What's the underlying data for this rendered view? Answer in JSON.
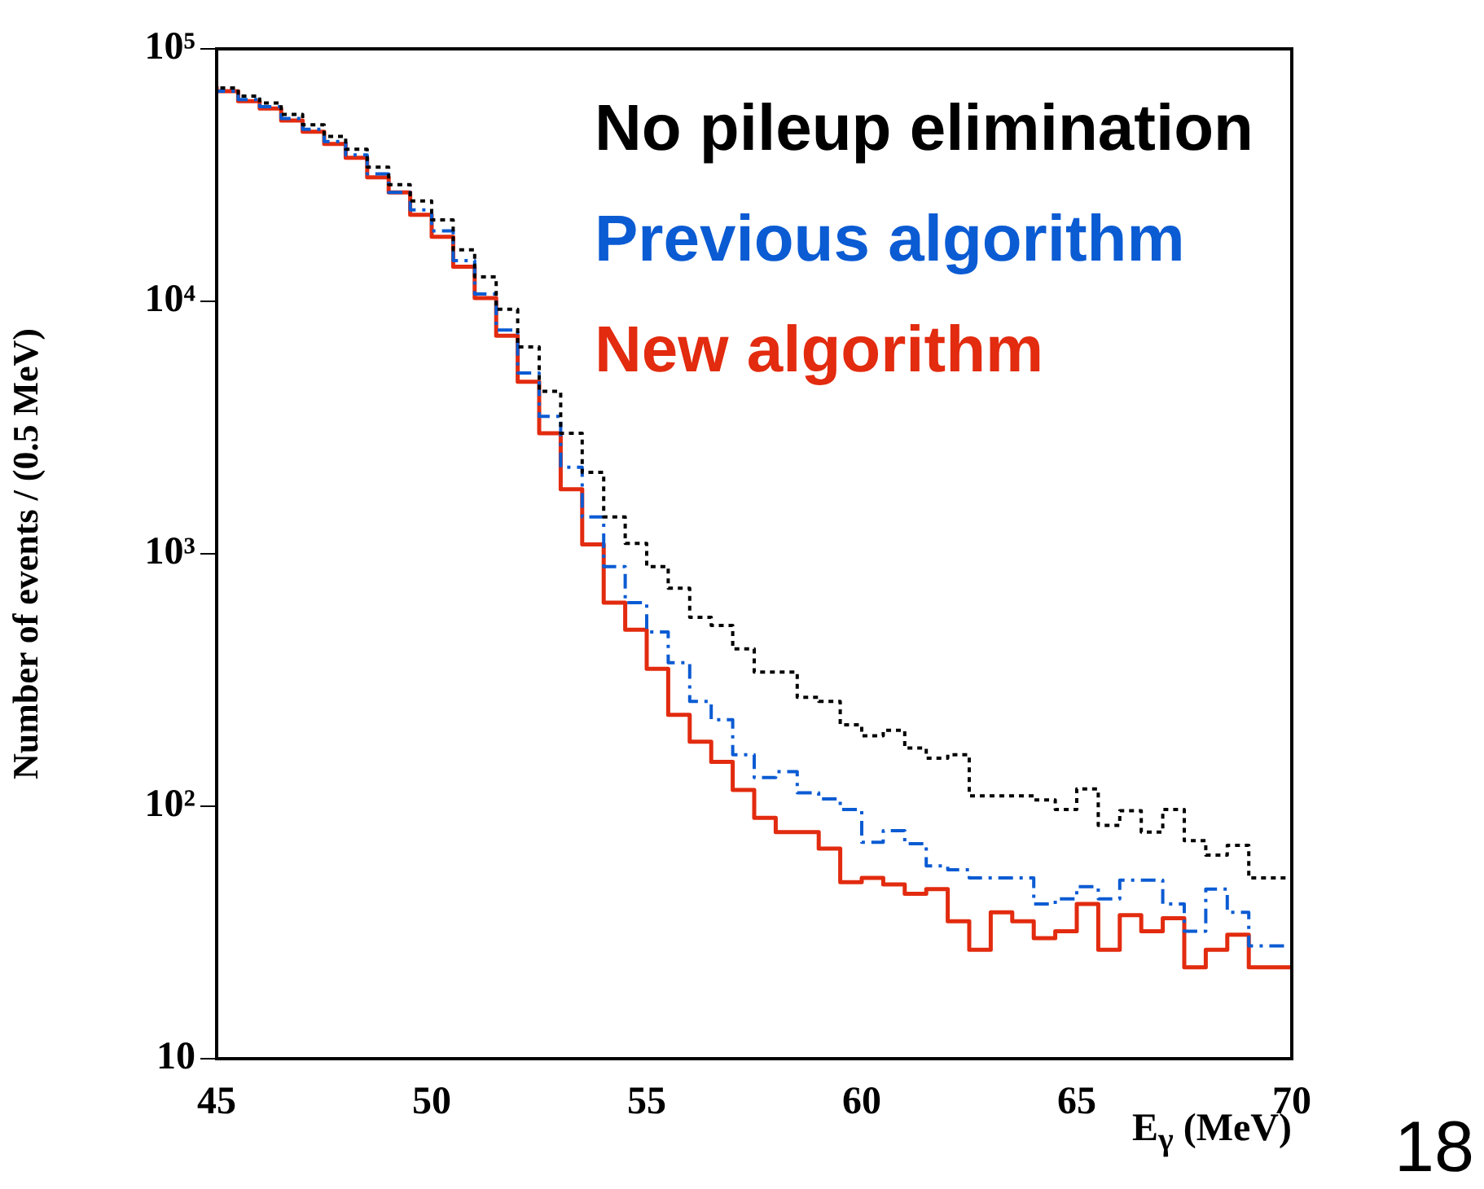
{
  "chart_data": {
    "type": "step",
    "ylabel": "Number of events / (0.5 MeV)",
    "xlabel": "E$_{γ}$ (MeV)",
    "x": [
      45,
      45.5,
      46,
      46.5,
      47,
      47.5,
      48,
      48.5,
      49,
      49.5,
      50,
      50.5,
      51,
      51.5,
      52,
      52.5,
      53,
      53.5,
      54,
      54.5,
      55,
      55.5,
      56,
      56.5,
      57,
      57.5,
      58,
      58.5,
      59,
      59.5,
      60,
      60.5,
      61,
      61.5,
      62,
      62.5,
      63,
      63.5,
      64,
      64.5,
      65,
      65.5,
      66,
      66.5,
      67,
      67.5,
      68,
      68.5,
      69,
      69.5,
      70
    ],
    "series": [
      {
        "name": "No pileup elimination",
        "color": "#000000",
        "line_style": "dotted",
        "values": [
          74000,
          70000,
          65000,
          61000,
          55000,
          50000,
          45000,
          40000,
          34000,
          29000,
          25000,
          21000,
          16000,
          12500,
          9300,
          6600,
          4400,
          3000,
          2100,
          1400,
          1100,
          890,
          730,
          560,
          520,
          420,
          340,
          340,
          270,
          260,
          210,
          190,
          200,
          170,
          155,
          160,
          110,
          110,
          110,
          106,
          97,
          117,
          84,
          96,
          79,
          97,
          73,
          64,
          70,
          52,
          52
        ]
      },
      {
        "name": "Previous algorithm",
        "color": "#0b5bd3",
        "line_style": "dashed",
        "values": [
          72000,
          68000,
          63000,
          59000,
          53000,
          48000,
          43000,
          38000,
          32000,
          27000,
          23000,
          19000,
          14500,
          10700,
          7700,
          5200,
          3500,
          2200,
          1400,
          890,
          640,
          490,
          370,
          260,
          220,
          160,
          130,
          137,
          113,
          107,
          97,
          72,
          80,
          71,
          58,
          56,
          52,
          52,
          52,
          41,
          43,
          48,
          43,
          51,
          51,
          41,
          32,
          47,
          38,
          28,
          28
        ]
      },
      {
        "name": "New algorithm",
        "color": "#e22b0f",
        "line_style": "solid",
        "values": [
          71000,
          68000,
          62000,
          58000,
          52000,
          47000,
          42000,
          37000,
          31000,
          27000,
          22000,
          18000,
          13700,
          10300,
          7300,
          4800,
          3000,
          1800,
          1090,
          640,
          500,
          350,
          230,
          180,
          150,
          116,
          90,
          79,
          79,
          68,
          50,
          52,
          49,
          45,
          47,
          35,
          27,
          38,
          35,
          30,
          32,
          41,
          27,
          37,
          32,
          36,
          23,
          27,
          31,
          23,
          23
        ]
      }
    ],
    "xlim": [
      45,
      70
    ],
    "xticks": [
      45,
      50,
      55,
      60,
      65,
      70
    ],
    "ylim": [
      10,
      100000
    ],
    "yticks": [
      {
        "value": 10,
        "label": "10"
      },
      {
        "value": 100,
        "label": "10²"
      },
      {
        "value": 1000,
        "label": "10³"
      },
      {
        "value": 10000,
        "label": "10⁴"
      },
      {
        "value": 100000,
        "label": "10⁵"
      }
    ],
    "log": "y",
    "grid": false,
    "legend": "top right",
    "annotations": [
      "18"
    ]
  }
}
